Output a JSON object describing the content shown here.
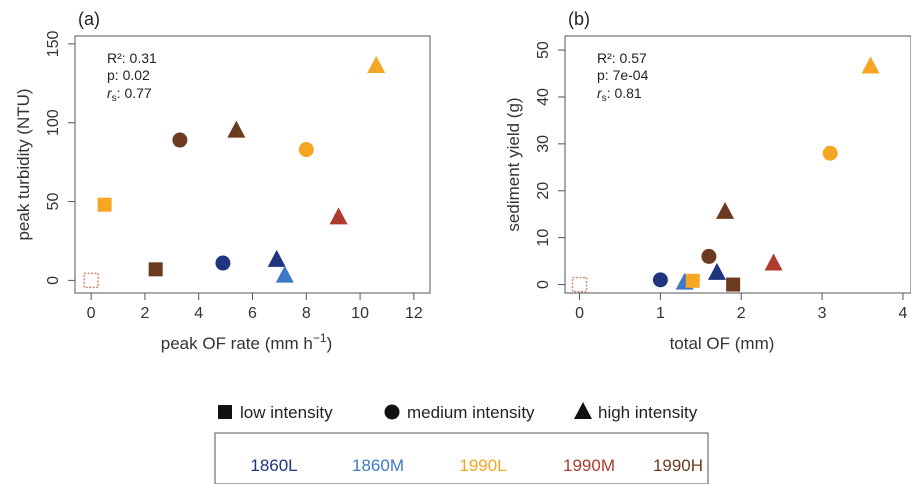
{
  "chart_data": [
    {
      "type": "scatter",
      "panel_label": "(a)",
      "xlabel": "peak OF rate (mm h",
      "xlabel_sup": "−1",
      "xlabel_tail": ")",
      "ylabel": "peak turbidity (NTU)",
      "xlim": [
        -0.6,
        12.6
      ],
      "ylim": [
        -8,
        155
      ],
      "xticks": [
        "0",
        "2",
        "4",
        "6",
        "8",
        "10",
        "12"
      ],
      "yticks": [
        "0",
        "50",
        "100",
        "150"
      ],
      "stats": {
        "r2": "R²: 0.31",
        "p": "p: 0.02",
        "rs_label": "r",
        "rs_sub": "s",
        "rs_value": ": 0.77"
      },
      "points": [
        {
          "x": 0,
          "y": 0,
          "site": "control",
          "intensity": "none"
        },
        {
          "x": 0.5,
          "y": 48,
          "site": "1990L",
          "intensity": "low"
        },
        {
          "x": 2.4,
          "y": 7,
          "site": "1990H",
          "intensity": "low"
        },
        {
          "x": 3.3,
          "y": 89,
          "site": "1990H",
          "intensity": "medium"
        },
        {
          "x": 4.9,
          "y": 11,
          "site": "1860L",
          "intensity": "medium"
        },
        {
          "x": 5.4,
          "y": 95,
          "site": "1990H",
          "intensity": "high"
        },
        {
          "x": 6.9,
          "y": 13,
          "site": "1860L",
          "intensity": "high"
        },
        {
          "x": 7.2,
          "y": 3,
          "site": "1860M",
          "intensity": "high"
        },
        {
          "x": 8.0,
          "y": 83,
          "site": "1990L",
          "intensity": "medium"
        },
        {
          "x": 9.2,
          "y": 40,
          "site": "1990M",
          "intensity": "high"
        },
        {
          "x": 10.6,
          "y": 136,
          "site": "1990L",
          "intensity": "high"
        }
      ]
    },
    {
      "type": "scatter",
      "panel_label": "(b)",
      "xlabel": "total OF (mm)",
      "ylabel": "sediment yield (g)",
      "xlim": [
        -0.18,
        4.1
      ],
      "ylim": [
        -1.8,
        53
      ],
      "xticks": [
        "0",
        "1",
        "2",
        "3",
        "4"
      ],
      "yticks": [
        "0",
        "10",
        "20",
        "30",
        "40",
        "50"
      ],
      "stats": {
        "r2": "R²: 0.57",
        "p": "p: 7e-04",
        "rs_label": "r",
        "rs_sub": "s",
        "rs_value": ": 0.81"
      },
      "points": [
        {
          "x": 0,
          "y": 0,
          "site": "control",
          "intensity": "none"
        },
        {
          "x": 1.0,
          "y": 1,
          "site": "1860L",
          "intensity": "medium"
        },
        {
          "x": 1.3,
          "y": 0.4,
          "site": "1860M",
          "intensity": "high"
        },
        {
          "x": 1.4,
          "y": 0.8,
          "site": "1990L",
          "intensity": "low"
        },
        {
          "x": 1.6,
          "y": 6,
          "site": "1990H",
          "intensity": "medium"
        },
        {
          "x": 1.7,
          "y": 2.5,
          "site": "1860L",
          "intensity": "high"
        },
        {
          "x": 1.8,
          "y": 15.5,
          "site": "1990H",
          "intensity": "high"
        },
        {
          "x": 1.9,
          "y": 0,
          "site": "1990H",
          "intensity": "low"
        },
        {
          "x": 2.4,
          "y": 4.5,
          "site": "1990M",
          "intensity": "high"
        },
        {
          "x": 3.1,
          "y": 28,
          "site": "1990L",
          "intensity": "medium"
        },
        {
          "x": 3.6,
          "y": 46.5,
          "site": "1990L",
          "intensity": "high"
        }
      ]
    }
  ],
  "legend": {
    "shapes": [
      {
        "key": "low",
        "label": "low intensity"
      },
      {
        "key": "medium",
        "label": "medium intensity"
      },
      {
        "key": "high",
        "label": "high intensity"
      }
    ],
    "sites": [
      {
        "key": "1860L",
        "label": "1860L",
        "color": "#1f3580"
      },
      {
        "key": "1860M",
        "label": "1860M",
        "color": "#3f78c4"
      },
      {
        "key": "1990L",
        "label": "1990L",
        "color": "#f5a623"
      },
      {
        "key": "1990M",
        "label": "1990M",
        "color": "#b03a2e"
      },
      {
        "key": "1990H",
        "label": "1990H",
        "color": "#6b3a1f"
      }
    ]
  },
  "colors": {
    "control": "#d9826e",
    "axis": "#555555"
  }
}
